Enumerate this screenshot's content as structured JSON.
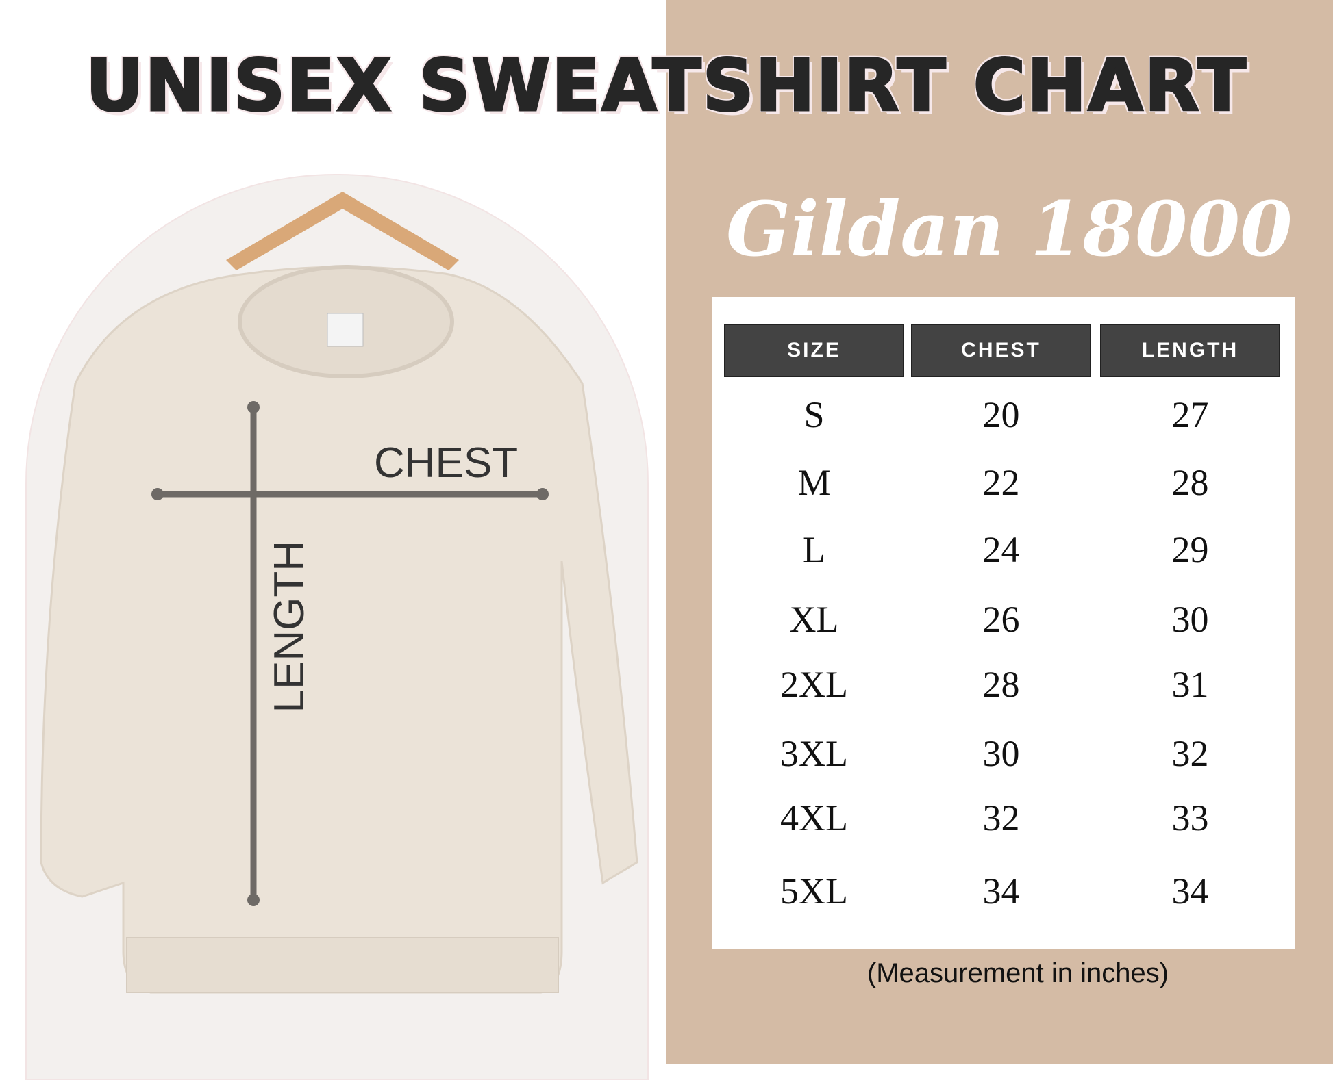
{
  "title": "UNISEX SWEATSHIRT CHART",
  "subtitle": "Gildan 18000",
  "image": {
    "chest_label": "CHEST",
    "length_label": "LENGTH"
  },
  "colors": {
    "panel": "#d4bba5",
    "header": "#434343",
    "guide_line": "#6e6a66",
    "shirt": "#ebe3d8"
  },
  "table": {
    "headers": [
      "SIZE",
      "CHEST",
      "LENGTH"
    ],
    "rows": [
      [
        "S",
        "20",
        "27"
      ],
      [
        "M",
        "22",
        "28"
      ],
      [
        "L",
        "24",
        "29"
      ],
      [
        "XL",
        "26",
        "30"
      ],
      [
        "2XL",
        "28",
        "31"
      ],
      [
        "3XL",
        "30",
        "32"
      ],
      [
        "4XL",
        "32",
        "33"
      ],
      [
        "5XL",
        "34",
        "34"
      ]
    ]
  },
  "note": "(Measurement in inches)"
}
